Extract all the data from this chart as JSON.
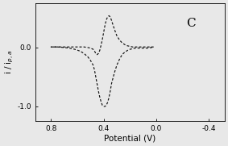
{
  "xlabel": "Potential (V)",
  "xlim": [
    0.92,
    -0.52
  ],
  "ylim": [
    -1.25,
    0.75
  ],
  "xticks": [
    0.8,
    0.4,
    0.0,
    -0.4
  ],
  "ytick_vals": [
    0.0,
    -1.0
  ],
  "ytick_labels": [
    "0.0",
    "-1.0"
  ],
  "label": "C",
  "line_color": "#111111",
  "cv_x": [
    0.02,
    0.04,
    0.06,
    0.08,
    0.1,
    0.12,
    0.14,
    0.16,
    0.18,
    0.2,
    0.22,
    0.24,
    0.26,
    0.28,
    0.3,
    0.32,
    0.34,
    0.35,
    0.36,
    0.37,
    0.38,
    0.39,
    0.4,
    0.41,
    0.42,
    0.43,
    0.44,
    0.45,
    0.46,
    0.47,
    0.48,
    0.5,
    0.52,
    0.55,
    0.58,
    0.62,
    0.66,
    0.7,
    0.75,
    0.8,
    0.8,
    0.75,
    0.7,
    0.66,
    0.62,
    0.58,
    0.55,
    0.52,
    0.5,
    0.48,
    0.47,
    0.46,
    0.45,
    0.44,
    0.43,
    0.42,
    0.41,
    0.4,
    0.39,
    0.38,
    0.37,
    0.36,
    0.35,
    0.34,
    0.32,
    0.3,
    0.28,
    0.26,
    0.24,
    0.22,
    0.2,
    0.18,
    0.16,
    0.14,
    0.12,
    0.1,
    0.08,
    0.06,
    0.04,
    0.02
  ],
  "cv_y": [
    0.01,
    0.01,
    0.01,
    0.01,
    0.01,
    0.01,
    0.01,
    0.01,
    0.01,
    0.02,
    0.03,
    0.05,
    0.08,
    0.13,
    0.2,
    0.32,
    0.46,
    0.52,
    0.54,
    0.52,
    0.47,
    0.38,
    0.26,
    0.14,
    0.04,
    -0.05,
    -0.1,
    -0.12,
    -0.1,
    -0.06,
    -0.03,
    -0.01,
    0.0,
    0.01,
    0.01,
    0.01,
    0.01,
    0.01,
    0.01,
    0.01,
    0.01,
    0.01,
    0.0,
    -0.01,
    -0.03,
    -0.06,
    -0.1,
    -0.16,
    -0.22,
    -0.3,
    -0.38,
    -0.5,
    -0.62,
    -0.74,
    -0.84,
    -0.92,
    -0.98,
    -1.0,
    -1.0,
    -0.98,
    -0.93,
    -0.85,
    -0.74,
    -0.61,
    -0.44,
    -0.3,
    -0.2,
    -0.12,
    -0.08,
    -0.05,
    -0.03,
    -0.02,
    -0.01,
    -0.01,
    -0.01,
    -0.01,
    -0.01,
    -0.01,
    0.0,
    0.0
  ],
  "fontsize_tick": 6.5,
  "fontsize_label": 7.5,
  "fontsize_annot": 11,
  "fig_width": 2.83,
  "fig_height": 1.81,
  "dpi": 100
}
